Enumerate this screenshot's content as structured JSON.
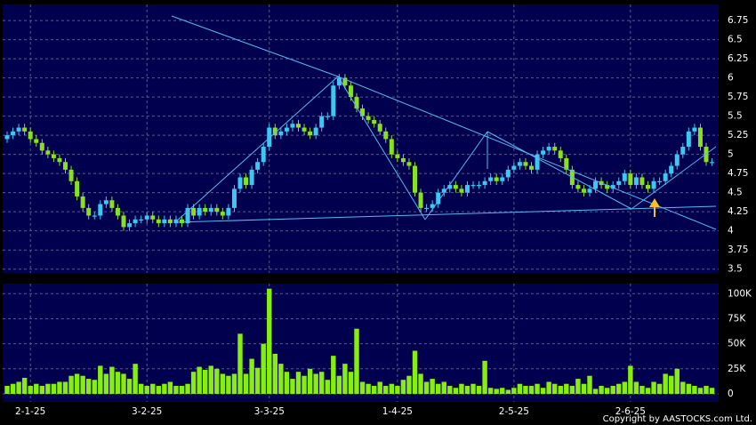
{
  "chart_data": [
    {
      "type": "candlestick",
      "categories": [
        null,
        null,
        null,
        null,
        "2-1-25",
        null,
        null,
        null,
        null,
        null,
        null,
        null,
        null,
        null,
        null,
        null,
        null,
        null,
        null,
        null,
        null,
        null,
        null,
        null,
        "3-2-25",
        null,
        null,
        null,
        null,
        null,
        null,
        null,
        null,
        null,
        null,
        null,
        null,
        null,
        null,
        null,
        null,
        null,
        null,
        null,
        null,
        "3-3-25",
        null,
        null,
        null,
        null,
        null,
        null,
        null,
        null,
        null,
        null,
        null,
        null,
        null,
        null,
        null,
        null,
        null,
        null,
        null,
        null,
        null,
        "1-4-25",
        null,
        null,
        null,
        null,
        null,
        null,
        null,
        null,
        null,
        null,
        null,
        null,
        null,
        null,
        null,
        null,
        null,
        null,
        null,
        "2-5-25",
        null,
        null,
        null,
        null,
        null,
        null,
        null,
        null,
        null,
        null,
        null,
        null,
        null,
        null,
        null,
        null,
        null,
        null,
        null,
        "2-6-25",
        null,
        null,
        null,
        null,
        null,
        null,
        null,
        null,
        null,
        null,
        null,
        null,
        null,
        null
      ],
      "open": [
        5.2,
        5.25,
        5.3,
        5.35,
        5.3,
        5.2,
        5.15,
        5.05,
        5.0,
        4.95,
        4.9,
        4.8,
        4.65,
        4.45,
        4.3,
        4.2,
        4.2,
        4.35,
        4.4,
        4.3,
        4.2,
        4.05,
        4.1,
        4.15,
        4.15,
        4.2,
        4.15,
        4.1,
        4.15,
        4.1,
        4.15,
        4.1,
        4.3,
        4.2,
        4.3,
        4.25,
        4.3,
        4.25,
        4.2,
        4.3,
        4.55,
        4.7,
        4.6,
        4.8,
        4.9,
        5.1,
        5.35,
        5.25,
        5.3,
        5.35,
        5.4,
        5.35,
        5.3,
        5.25,
        5.35,
        5.5,
        5.5,
        5.9,
        6.0,
        5.9,
        5.75,
        5.6,
        5.5,
        5.45,
        5.4,
        5.3,
        5.2,
        5.0,
        4.95,
        4.9,
        4.85,
        4.5,
        4.3,
        4.3,
        4.35,
        4.5,
        4.55,
        4.6,
        4.55,
        4.5,
        4.6,
        4.6,
        4.6,
        4.65,
        4.7,
        4.65,
        4.7,
        4.8,
        4.85,
        4.9,
        4.85,
        4.8,
        5.0,
        5.05,
        5.1,
        5.05,
        4.95,
        4.8,
        4.6,
        4.55,
        4.5,
        4.55,
        4.65,
        4.6,
        4.55,
        4.6,
        4.65,
        4.75,
        4.6,
        4.7,
        4.6,
        4.55,
        4.65,
        4.65,
        4.75,
        4.85,
        5.0,
        5.1,
        5.3,
        5.35,
        5.1,
        4.9
      ],
      "high": [
        5.3,
        5.35,
        5.4,
        5.4,
        5.35,
        5.25,
        5.2,
        5.1,
        5.05,
        5.0,
        4.95,
        4.85,
        4.7,
        4.5,
        4.35,
        4.25,
        4.4,
        4.45,
        4.45,
        4.35,
        4.25,
        4.15,
        4.2,
        4.2,
        4.25,
        4.25,
        4.2,
        4.2,
        4.2,
        4.2,
        4.2,
        4.35,
        4.35,
        4.35,
        4.35,
        4.35,
        4.35,
        4.3,
        4.35,
        4.6,
        4.75,
        4.75,
        4.85,
        4.95,
        5.15,
        5.4,
        5.4,
        5.35,
        5.4,
        5.45,
        5.45,
        5.4,
        5.35,
        5.4,
        5.55,
        5.55,
        5.95,
        6.05,
        6.05,
        5.95,
        5.8,
        5.65,
        5.55,
        5.5,
        5.45,
        5.35,
        5.25,
        5.05,
        5.0,
        4.95,
        4.9,
        4.55,
        4.35,
        4.4,
        4.55,
        4.6,
        4.65,
        4.65,
        4.6,
        4.65,
        4.65,
        4.65,
        4.7,
        4.75,
        4.75,
        4.75,
        4.85,
        4.9,
        4.95,
        4.95,
        4.9,
        5.05,
        5.1,
        5.15,
        5.15,
        5.1,
        5.0,
        4.85,
        4.65,
        4.6,
        4.6,
        4.7,
        4.7,
        4.65,
        4.65,
        4.7,
        4.8,
        4.8,
        4.75,
        4.75,
        4.65,
        4.7,
        4.7,
        4.8,
        4.9,
        5.05,
        5.15,
        5.35,
        5.4,
        5.4,
        5.15,
        4.95
      ],
      "low": [
        5.15,
        5.2,
        5.25,
        5.25,
        5.15,
        5.1,
        5.0,
        4.95,
        4.9,
        4.85,
        4.75,
        4.6,
        4.4,
        4.25,
        4.15,
        4.15,
        4.15,
        4.3,
        4.25,
        4.15,
        4.0,
        4.0,
        4.05,
        4.1,
        4.1,
        4.1,
        4.05,
        4.05,
        4.05,
        4.05,
        4.05,
        4.05,
        4.15,
        4.15,
        4.2,
        4.2,
        4.2,
        4.15,
        4.15,
        4.25,
        4.5,
        4.55,
        4.55,
        4.75,
        4.85,
        5.05,
        5.2,
        5.2,
        5.25,
        5.3,
        5.3,
        5.25,
        5.2,
        5.2,
        5.3,
        5.45,
        5.45,
        5.85,
        5.85,
        5.7,
        5.55,
        5.45,
        5.4,
        5.35,
        5.25,
        5.15,
        4.95,
        4.9,
        4.85,
        4.8,
        4.45,
        4.25,
        4.25,
        4.25,
        4.3,
        4.45,
        4.5,
        4.5,
        4.45,
        4.45,
        4.55,
        4.55,
        4.55,
        4.6,
        4.6,
        4.6,
        4.65,
        4.75,
        4.8,
        4.8,
        4.75,
        4.75,
        4.95,
        5.0,
        5.0,
        4.9,
        4.75,
        4.55,
        4.5,
        4.45,
        4.45,
        4.5,
        4.55,
        4.5,
        4.5,
        4.55,
        4.6,
        4.55,
        4.55,
        4.55,
        4.5,
        4.5,
        4.6,
        4.6,
        4.7,
        4.8,
        4.95,
        5.05,
        5.25,
        5.05,
        4.85,
        4.85
      ],
      "close": [
        5.25,
        5.3,
        5.35,
        5.3,
        5.2,
        5.15,
        5.05,
        5.0,
        4.95,
        4.9,
        4.8,
        4.65,
        4.45,
        4.3,
        4.2,
        4.2,
        4.35,
        4.4,
        4.3,
        4.2,
        4.05,
        4.1,
        4.15,
        4.15,
        4.2,
        4.15,
        4.1,
        4.15,
        4.1,
        4.15,
        4.1,
        4.3,
        4.2,
        4.3,
        4.25,
        4.3,
        4.25,
        4.2,
        4.3,
        4.55,
        4.7,
        4.6,
        4.8,
        4.9,
        5.1,
        5.35,
        5.25,
        5.3,
        5.35,
        5.4,
        5.35,
        5.3,
        5.25,
        5.35,
        5.5,
        5.5,
        5.9,
        6.0,
        5.9,
        5.75,
        5.6,
        5.5,
        5.45,
        5.4,
        5.3,
        5.2,
        5.0,
        4.95,
        4.9,
        4.85,
        4.5,
        4.3,
        4.3,
        4.35,
        4.5,
        4.55,
        4.6,
        4.55,
        4.5,
        4.6,
        4.6,
        4.6,
        4.65,
        4.7,
        4.65,
        4.7,
        4.8,
        4.85,
        4.9,
        4.85,
        4.8,
        5.0,
        5.05,
        5.1,
        5.05,
        4.95,
        4.8,
        4.6,
        4.55,
        4.5,
        4.55,
        4.65,
        4.6,
        4.55,
        4.6,
        4.65,
        4.75,
        4.6,
        4.7,
        4.6,
        4.55,
        4.65,
        4.65,
        4.75,
        4.85,
        5.0,
        5.1,
        5.3,
        5.35,
        5.1,
        4.9,
        4.9
      ],
      "up_color": "#3cc8f0",
      "down_color": "#88e020",
      "ylim": [
        3.45,
        6.96
      ],
      "yticks": [
        3.5,
        3.75,
        4,
        4.25,
        4.5,
        4.75,
        5,
        5.25,
        5.5,
        5.75,
        6,
        6.25,
        6.5,
        6.75
      ],
      "grid": true
    },
    {
      "type": "bar",
      "values": [
        8000,
        10000,
        12000,
        16000,
        8000,
        10000,
        8000,
        10000,
        10000,
        12000,
        12000,
        18000,
        20000,
        18000,
        15000,
        14000,
        28000,
        20000,
        27000,
        22000,
        20000,
        15000,
        30000,
        10000,
        8000,
        10000,
        8000,
        10000,
        12000,
        8000,
        8000,
        10000,
        22000,
        27000,
        24000,
        28000,
        25000,
        20000,
        18000,
        20000,
        60000,
        20000,
        35000,
        26000,
        50000,
        105000,
        40000,
        30000,
        22000,
        15000,
        22000,
        18000,
        25000,
        20000,
        22000,
        14000,
        38000,
        18000,
        30000,
        22000,
        65000,
        12000,
        10000,
        8000,
        12000,
        8000,
        10000,
        8000,
        14000,
        18000,
        43000,
        20000,
        12000,
        15000,
        10000,
        12000,
        8000,
        6000,
        10000,
        8000,
        10000,
        8000,
        33000,
        6000,
        5000,
        6000,
        4000,
        6000,
        10000,
        8000,
        8000,
        10000,
        6000,
        12000,
        10000,
        8000,
        10000,
        8000,
        15000,
        10000,
        18000,
        5000,
        8000,
        6000,
        8000,
        10000,
        12000,
        28000,
        12000,
        8000,
        6000,
        12000,
        10000,
        20000,
        18000,
        25000,
        12000,
        10000,
        8000,
        6000,
        8000,
        6000
      ],
      "color": "#88ee10",
      "ylim": [
        -8000,
        110000
      ],
      "yticks": [
        0,
        {
          "value": 25000,
          "label": "25K"
        },
        {
          "value": 50000,
          "label": "50K"
        },
        {
          "value": 75000,
          "label": "75K"
        },
        {
          "value": 100000,
          "label": "100K"
        }
      ],
      "grid": true,
      "source": "Copyright by AASTOCKS.com Ltd."
    }
  ]
}
